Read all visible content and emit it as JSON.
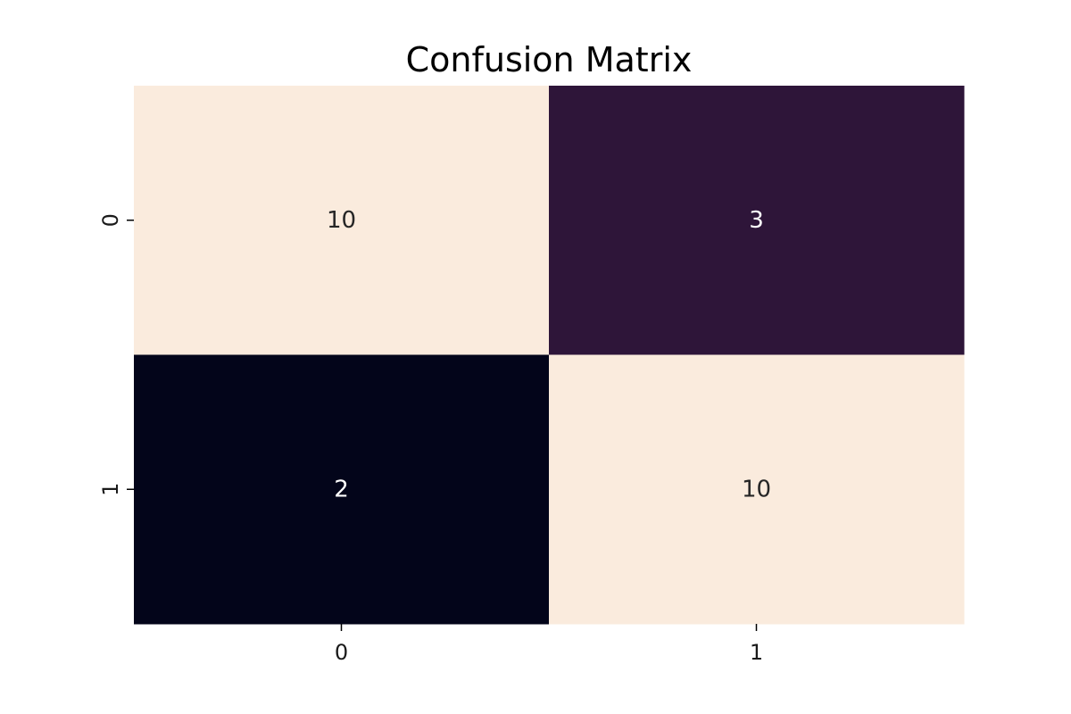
{
  "chart_data": {
    "type": "heatmap",
    "title": "Confusion Matrix",
    "xlabel": "",
    "ylabel": "",
    "x_categories": [
      "0",
      "1"
    ],
    "y_categories": [
      "0",
      "1"
    ],
    "values": [
      [
        10,
        3
      ],
      [
        2,
        10
      ]
    ],
    "colorbar": false,
    "grid": false,
    "colors": {
      "high": "#faebdd",
      "mid": "#2e1539",
      "low": "#03051a",
      "label_on_dark": "#ffffff",
      "label_on_light": "#262626"
    }
  }
}
